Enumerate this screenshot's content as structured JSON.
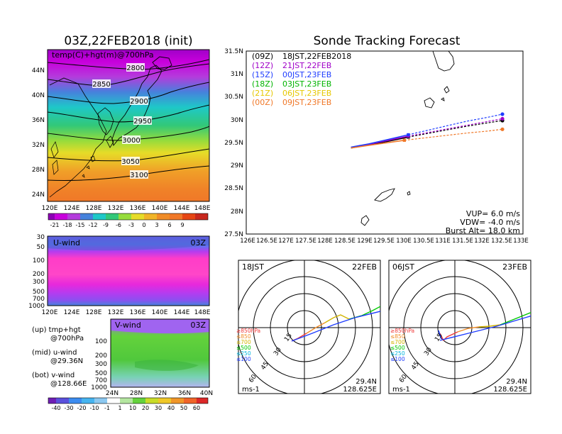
{
  "left_title": "03Z,22FEB2018 (init)",
  "right_title": "Sonde Tracking Forecast",
  "map_panel": {
    "label": "temp(C)+hgt(m)@700hPa",
    "lon_labels": [
      "120E",
      "124E",
      "128E",
      "132E",
      "136E",
      "140E",
      "144E",
      "148E"
    ],
    "lat_labels": [
      "44N",
      "40N",
      "36N",
      "32N",
      "28N",
      "24N"
    ],
    "contour_labels": [
      "2800",
      "2850",
      "2900",
      "2950",
      "3000",
      "3050",
      "3100"
    ],
    "colorbar_labels": [
      "-21",
      "-18",
      "-15",
      "-12",
      "-9",
      "-6",
      "-3",
      "0",
      "3",
      "6",
      "9"
    ]
  },
  "uwind_panel": {
    "label": "U-wind",
    "time": "03Z",
    "p_labels": [
      "30",
      "50",
      "100",
      "200",
      "300",
      "500",
      "700",
      "1000"
    ],
    "lon_labels": [
      "120E",
      "124E",
      "128E",
      "132E",
      "136E",
      "140E",
      "144E",
      "148E"
    ]
  },
  "vwind_panel": {
    "label": "V-wind",
    "time": "03Z",
    "p_labels": [
      "100",
      "200",
      "300",
      "500",
      "700",
      "1000"
    ],
    "lat_labels": [
      "24N",
      "28N",
      "32N",
      "36N",
      "40N"
    ],
    "colorbar_labels": [
      "-40",
      "-30",
      "-20",
      "-10",
      "-1",
      "1",
      "10",
      "20",
      "30",
      "40",
      "50",
      "60"
    ]
  },
  "notes": {
    "up1": "(up) tmp+hgt",
    "up2": "@700hPa",
    "mid1": "(mid) u-wind",
    "mid2": "@29.36N",
    "bot1": "(bot) v-wind",
    "bot2": "@128.66E"
  },
  "track_panel": {
    "x_labels": [
      "126E",
      "126.5E",
      "127E",
      "127.5E",
      "128E",
      "128.5E",
      "129E",
      "129.5E",
      "130E",
      "130.5E",
      "131E",
      "131.5E",
      "132E",
      "132.5E",
      "133E"
    ],
    "y_labels": [
      "31.5N",
      "31N",
      "30.5N",
      "30N",
      "29.5N",
      "29N",
      "28.5N",
      "28N",
      "27.5N"
    ],
    "legend": [
      {
        "z": "(09Z)",
        "t": "18JST,22FEB2018",
        "color": "#000000"
      },
      {
        "z": "(12Z)",
        "t": "21JST,22FEB",
        "color": "#a000c8"
      },
      {
        "z": "(15Z)",
        "t": "00JST,23FEB",
        "color": "#1e3cff"
      },
      {
        "z": "(18Z)",
        "t": "03JST,23FEB",
        "color": "#00b400"
      },
      {
        "z": "(21Z)",
        "t": "06JST,23FEB",
        "color": "#e6c800"
      },
      {
        "z": "(00Z)",
        "t": "09JST,23FEB",
        "color": "#f07828"
      }
    ],
    "params": [
      "VUP= 6.0 m/s",
      "VDW= -4.0 m/s",
      "Burst Alt= 18.0 km"
    ]
  },
  "hodo_left": {
    "time": "18JST",
    "date": "22FEB",
    "lat": "29.4N",
    "lon": "128.625E",
    "unit": "ms-1"
  },
  "hodo_right": {
    "time": "06JST",
    "date": "23FEB",
    "lat": "29.4N",
    "lon": "128.625E",
    "unit": "ms-1"
  },
  "hodo_legend": [
    "≥850hPa",
    "≤850",
    "≤700",
    "≤500",
    "≤250",
    "≤100"
  ],
  "hodo_ring_labels": [
    "15",
    "30",
    "45",
    "60"
  ],
  "colors": {
    "level850": "#f03c3c",
    "level700": "#f08c28",
    "level500": "#d2b400",
    "level250": "#00c800",
    "level100": "#00b4dc",
    "hodo_line": "#1e3cff"
  },
  "chart_data": [
    {
      "type": "line",
      "title": "Sonde Tracking Forecast",
      "xlabel": "",
      "ylabel": "",
      "xlim": [
        126,
        133
      ],
      "ylim": [
        27.5,
        31.5
      ],
      "series": [
        {
          "name": "(09Z) 18JST,22FEB2018",
          "x": [
            128.65,
            129.1,
            129.6,
            130.1,
            130.6,
            131.1,
            131.6,
            132.1,
            132.48
          ],
          "y": [
            29.38,
            29.45,
            29.53,
            29.62,
            29.7,
            29.78,
            29.86,
            29.93,
            29.98
          ]
        },
        {
          "name": "(12Z) 21JST,22FEB",
          "x": [
            128.65,
            129.1,
            129.6,
            130.1,
            130.6,
            131.1,
            131.6,
            132.1,
            132.48
          ],
          "y": [
            29.39,
            29.46,
            29.55,
            29.64,
            29.72,
            29.8,
            29.88,
            29.96,
            30.02
          ]
        },
        {
          "name": "(15Z) 00JST,23FEB",
          "x": [
            128.65,
            129.1,
            129.6,
            130.1,
            130.6,
            131.1,
            131.6,
            132.1,
            132.48
          ],
          "y": [
            29.4,
            29.47,
            29.57,
            29.67,
            29.77,
            29.87,
            29.97,
            30.05,
            30.12
          ]
        },
        {
          "name": "(00Z) 09JST,23FEB",
          "x": [
            128.65,
            129.1,
            129.6,
            130.0,
            130.6,
            131.1,
            131.6,
            132.1,
            132.48
          ],
          "y": [
            29.38,
            29.44,
            29.5,
            29.55,
            29.61,
            29.66,
            29.71,
            29.75,
            29.79
          ]
        }
      ]
    }
  ]
}
